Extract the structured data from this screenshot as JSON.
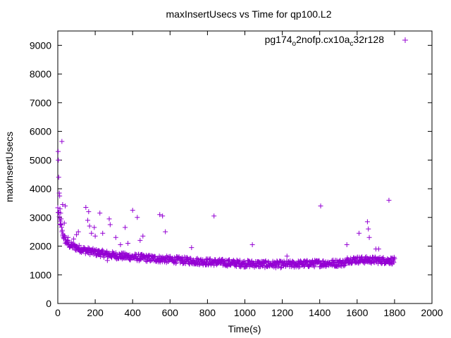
{
  "chart_data": {
    "type": "scatter",
    "title": "maxInsertUsecs vs Time for qp100.L2",
    "xlabel": "Time(s)",
    "ylabel": "maxInsertUsecs",
    "xlim": [
      0,
      2000
    ],
    "ylim": [
      0,
      9500
    ],
    "xticks": [
      0,
      200,
      400,
      600,
      800,
      1000,
      1200,
      1400,
      1600,
      1800,
      2000
    ],
    "yticks": [
      0,
      1000,
      2000,
      3000,
      4000,
      5000,
      6000,
      7000,
      8000,
      9000
    ],
    "grid": false,
    "legend_position": "top-right",
    "marker": "+",
    "series": [
      {
        "name": "pg174_o2nofp.cx10a_c32r128",
        "name_parts": {
          "a": "pg174",
          "b": "o",
          "c": "2nofp.cx10a",
          "d": "c",
          "e": "32r128"
        },
        "color": "#9400d3",
        "outliers": [
          {
            "x": 2,
            "y": 5300
          },
          {
            "x": 3,
            "y": 5000
          },
          {
            "x": 5,
            "y": 4400
          },
          {
            "x": 8,
            "y": 3850
          },
          {
            "x": 10,
            "y": 3750
          },
          {
            "x": 12,
            "y": 3300
          },
          {
            "x": 15,
            "y": 3150
          },
          {
            "x": 18,
            "y": 2950
          },
          {
            "x": 22,
            "y": 5650
          },
          {
            "x": 26,
            "y": 3450
          },
          {
            "x": 35,
            "y": 2800
          },
          {
            "x": 40,
            "y": 3400
          },
          {
            "x": 55,
            "y": 2300
          },
          {
            "x": 85,
            "y": 2250
          },
          {
            "x": 100,
            "y": 2400
          },
          {
            "x": 110,
            "y": 2500
          },
          {
            "x": 150,
            "y": 3350
          },
          {
            "x": 160,
            "y": 2900
          },
          {
            "x": 165,
            "y": 3200
          },
          {
            "x": 170,
            "y": 2700
          },
          {
            "x": 180,
            "y": 2450
          },
          {
            "x": 195,
            "y": 2650
          },
          {
            "x": 200,
            "y": 2350
          },
          {
            "x": 225,
            "y": 3150
          },
          {
            "x": 240,
            "y": 2450
          },
          {
            "x": 265,
            "y": 1500
          },
          {
            "x": 275,
            "y": 2950
          },
          {
            "x": 280,
            "y": 2750
          },
          {
            "x": 310,
            "y": 2300
          },
          {
            "x": 335,
            "y": 2050
          },
          {
            "x": 360,
            "y": 2650
          },
          {
            "x": 375,
            "y": 2100
          },
          {
            "x": 400,
            "y": 3250
          },
          {
            "x": 425,
            "y": 3000
          },
          {
            "x": 440,
            "y": 2200
          },
          {
            "x": 455,
            "y": 2350
          },
          {
            "x": 545,
            "y": 3100
          },
          {
            "x": 560,
            "y": 3050
          },
          {
            "x": 575,
            "y": 2500
          },
          {
            "x": 715,
            "y": 1950
          },
          {
            "x": 835,
            "y": 3050
          },
          {
            "x": 1040,
            "y": 2050
          },
          {
            "x": 1225,
            "y": 1650
          },
          {
            "x": 1405,
            "y": 3400
          },
          {
            "x": 1545,
            "y": 2050
          },
          {
            "x": 1610,
            "y": 2450
          },
          {
            "x": 1655,
            "y": 2850
          },
          {
            "x": 1660,
            "y": 2600
          },
          {
            "x": 1665,
            "y": 2300
          },
          {
            "x": 1700,
            "y": 1900
          },
          {
            "x": 1715,
            "y": 1900
          },
          {
            "x": 1770,
            "y": 3600
          }
        ],
        "band": {
          "x_start": 0,
          "x_end": 1800,
          "center": [
            {
              "x": 0,
              "y": 3300
            },
            {
              "x": 10,
              "y": 2900
            },
            {
              "x": 25,
              "y": 2450
            },
            {
              "x": 40,
              "y": 2200
            },
            {
              "x": 60,
              "y": 2050
            },
            {
              "x": 100,
              "y": 1950
            },
            {
              "x": 150,
              "y": 1850
            },
            {
              "x": 200,
              "y": 1780
            },
            {
              "x": 300,
              "y": 1680
            },
            {
              "x": 400,
              "y": 1620
            },
            {
              "x": 500,
              "y": 1570
            },
            {
              "x": 600,
              "y": 1530
            },
            {
              "x": 700,
              "y": 1490
            },
            {
              "x": 800,
              "y": 1450
            },
            {
              "x": 900,
              "y": 1420
            },
            {
              "x": 1000,
              "y": 1390
            },
            {
              "x": 1100,
              "y": 1370
            },
            {
              "x": 1200,
              "y": 1360
            },
            {
              "x": 1300,
              "y": 1380
            },
            {
              "x": 1400,
              "y": 1400
            },
            {
              "x": 1500,
              "y": 1410
            },
            {
              "x": 1540,
              "y": 1420
            },
            {
              "x": 1550,
              "y": 1520
            },
            {
              "x": 1600,
              "y": 1520
            },
            {
              "x": 1700,
              "y": 1510
            },
            {
              "x": 1800,
              "y": 1490
            }
          ],
          "spread": 120,
          "approx_point_count": 900
        }
      }
    ]
  }
}
